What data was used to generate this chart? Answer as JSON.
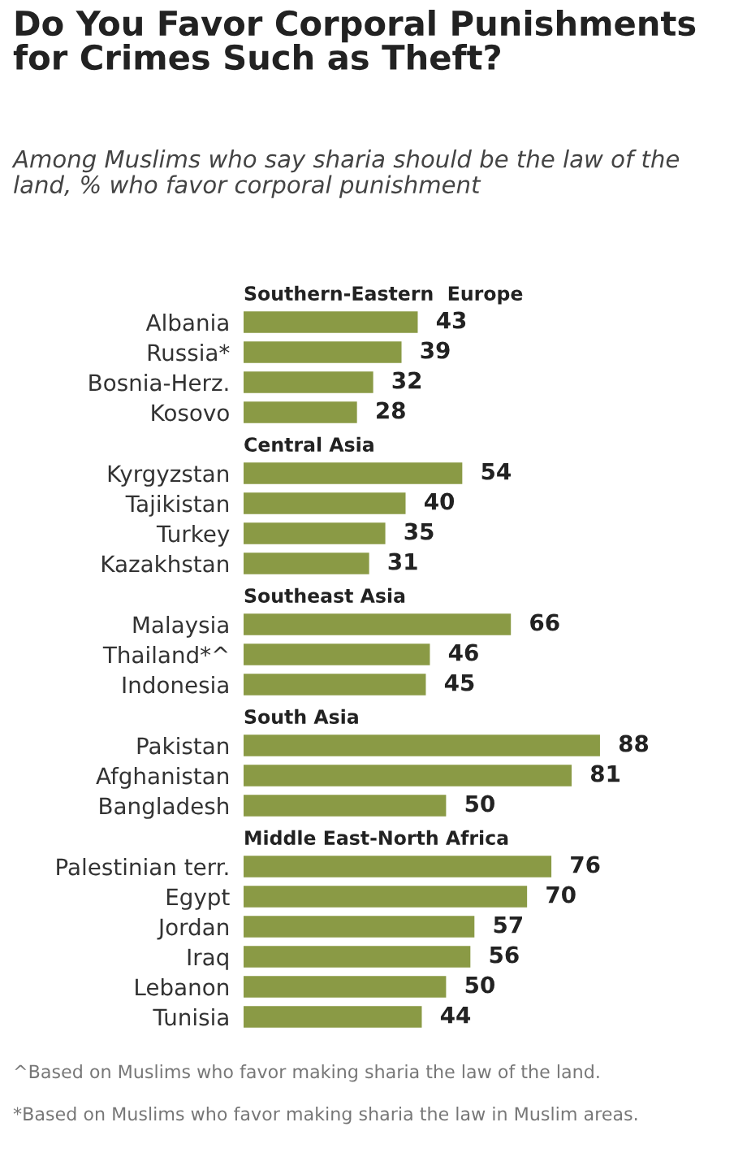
{
  "chart_data": [
    {
      "type": "bar",
      "orientation": "horizontal",
      "title": "Do You Favor Corporal Punishments for Crimes Such as Theft?",
      "subtitle": "Among Muslims who say sharia should be the law of the land, % who favor corporal punishment",
      "legend_title": "Southern-Eastern  Europe",
      "categories": [
        "Albania",
        "Russia*",
        "Bosnia-Herz.",
        "Kosovo"
      ],
      "values": [
        43,
        39,
        32,
        28
      ],
      "color": "#8a9a45",
      "data_labels": true,
      "tick_labels": "y",
      "grid": false
    },
    {
      "type": "bar",
      "orientation": "horizontal",
      "legend_title": "Central Asia",
      "categories": [
        "Kyrgyzstan",
        "Tajikistan",
        "Turkey",
        "Kazakhstan"
      ],
      "values": [
        54,
        40,
        35,
        31
      ],
      "color": "#8a9a45",
      "data_labels": true,
      "tick_labels": "y",
      "grid": false
    },
    {
      "type": "bar",
      "orientation": "horizontal",
      "legend_title": "Southeast Asia",
      "categories": [
        "Malaysia",
        "Thailand*^",
        "Indonesia"
      ],
      "values": [
        66,
        46,
        45
      ],
      "color": "#8a9a45",
      "data_labels": true,
      "tick_labels": "y",
      "grid": false
    },
    {
      "type": "bar",
      "orientation": "horizontal",
      "legend_title": "South Asia",
      "categories": [
        "Pakistan",
        "Afghanistan",
        "Bangladesh"
      ],
      "values": [
        88,
        81,
        50
      ],
      "color": "#8a9a45",
      "data_labels": true,
      "tick_labels": "y",
      "grid": false
    },
    {
      "type": "bar",
      "orientation": "horizontal",
      "legend_title": "Middle East-North Africa",
      "categories": [
        "Palestinian terr.",
        "Egypt",
        "Jordan",
        "Iraq",
        "Lebanon",
        "Tunisia"
      ],
      "values": [
        76,
        70,
        57,
        56,
        50,
        44
      ],
      "color": "#8a9a45",
      "data_labels": true,
      "tick_labels": "y",
      "grid": false,
      "annotations": [
        "^Based on Muslims who favor making sharia the law of the land.",
        "*Based on Muslims who favor making sharia the law in Muslim areas."
      ]
    }
  ]
}
